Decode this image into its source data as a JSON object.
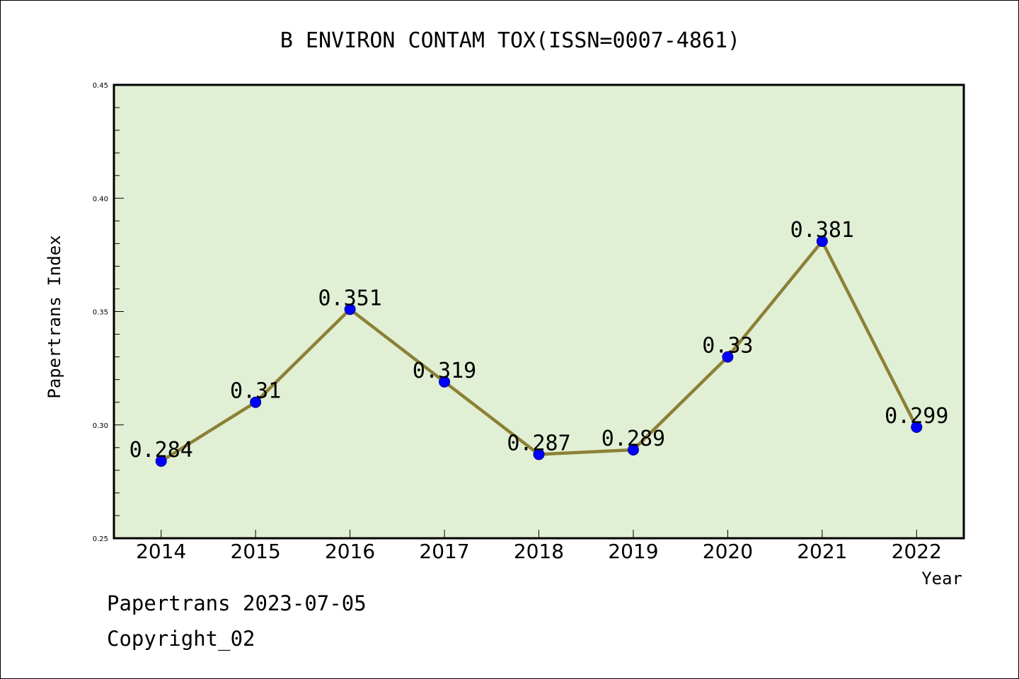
{
  "colors": {
    "plot_background": "#e1efd4",
    "line": "#8b8036",
    "marker": "#0000ff",
    "marker_edge": "#00008b",
    "axis": "#000000"
  },
  "chart_data": {
    "type": "line",
    "title": "B ENVIRON CONTAM TOX(ISSN=0007-4861)",
    "xlabel": "Year",
    "ylabel": "Papertrans Index",
    "categories": [
      "2014",
      "2015",
      "2016",
      "2017",
      "2018",
      "2019",
      "2020",
      "2021",
      "2022"
    ],
    "series": [
      {
        "values": [
          0.284,
          0.31,
          0.351,
          0.319,
          0.287,
          0.289,
          0.33,
          0.381,
          0.299
        ],
        "data_labels": [
          "0.284",
          "0.31",
          "0.351",
          "0.319",
          "0.287",
          "0.289",
          "0.33",
          "0.381",
          "0.299"
        ]
      }
    ],
    "ylim": [
      0.25,
      0.45
    ],
    "y_ticks": [
      "0.25",
      "0.30",
      "0.35",
      "0.40",
      "0.45"
    ],
    "grid": false,
    "legend": "none"
  },
  "footer": {
    "date_text": "Papertrans 2023-07-05",
    "copyright_text": "Copyright_02"
  }
}
